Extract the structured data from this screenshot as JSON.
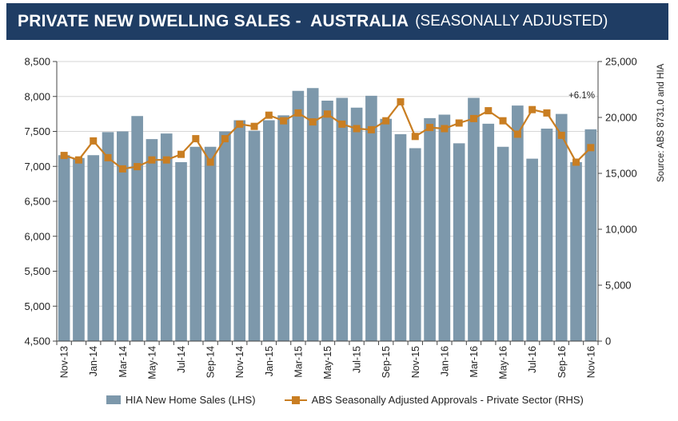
{
  "header": {
    "title": "PRIVATE NEW DWELLING SALES -  AUSTRALIA",
    "subtitle": "(SEASONALLY ADJUSTED)"
  },
  "colors": {
    "header_bg": "#1f3d64",
    "bar": "#7d98ab",
    "line": "#c97e22"
  },
  "chart_data": {
    "type": "bar",
    "source_label": "Source: ABS 8731.0 and HIA",
    "annotation": "+6.1%",
    "categories": [
      "Nov-13",
      "Dec-13",
      "Jan-14",
      "Feb-14",
      "Mar-14",
      "Apr-14",
      "May-14",
      "Jun-14",
      "Jul-14",
      "Aug-14",
      "Sep-14",
      "Oct-14",
      "Nov-14",
      "Dec-14",
      "Jan-15",
      "Feb-15",
      "Mar-15",
      "Apr-15",
      "May-15",
      "Jun-15",
      "Jul-15",
      "Aug-15",
      "Sep-15",
      "Oct-15",
      "Nov-15",
      "Dec-15",
      "Jan-16",
      "Feb-16",
      "Mar-16",
      "Apr-16",
      "May-16",
      "Jun-16",
      "Jul-16",
      "Aug-16",
      "Sep-16",
      "Oct-16",
      "Nov-16"
    ],
    "x_tick_labels": [
      "Nov-13",
      "Jan-14",
      "Mar-14",
      "May-14",
      "Jul-14",
      "Sep-14",
      "Nov-14",
      "Jan-15",
      "Mar-15",
      "May-15",
      "Jul-15",
      "Sep-15",
      "Nov-15",
      "Jan-16",
      "Mar-16",
      "May-16",
      "Jul-16",
      "Sep-16",
      "Nov-16"
    ],
    "left_axis": {
      "ylim": [
        4500,
        8500
      ],
      "ticks": [
        "4,500",
        "5,000",
        "5,500",
        "6,000",
        "6,500",
        "7,000",
        "7,500",
        "8,000",
        "8,500"
      ]
    },
    "right_axis": {
      "ylim": [
        0,
        25000
      ],
      "ticks": [
        "0",
        "5,000",
        "10,000",
        "15,000",
        "20,000",
        "25,000"
      ]
    },
    "series": [
      {
        "name": "HIA New Home Sales (LHS)",
        "type": "bar",
        "axis": "left",
        "values": [
          7160,
          7120,
          7160,
          7490,
          7500,
          7720,
          7390,
          7470,
          7060,
          7280,
          7280,
          7500,
          7660,
          7510,
          7660,
          7730,
          8080,
          8120,
          7940,
          7980,
          7840,
          8010,
          7680,
          7460,
          7260,
          7690,
          7740,
          7330,
          7980,
          7610,
          7280,
          7870,
          7110,
          7540,
          7750,
          7060,
          7530
        ]
      },
      {
        "name": "ABS Seasonally Adjusted Approvals - Private Sector (RHS)",
        "type": "line",
        "axis": "right",
        "values": [
          16600,
          16200,
          17900,
          16400,
          15400,
          15600,
          16200,
          16200,
          16700,
          18100,
          16000,
          18100,
          19400,
          19200,
          20200,
          19700,
          20400,
          19600,
          20300,
          19400,
          19000,
          18900,
          19700,
          21400,
          18300,
          19100,
          19000,
          19500,
          19900,
          20600,
          19700,
          18500,
          20700,
          20400,
          18400,
          16000,
          17300
        ]
      }
    ],
    "legend": "bottom"
  }
}
